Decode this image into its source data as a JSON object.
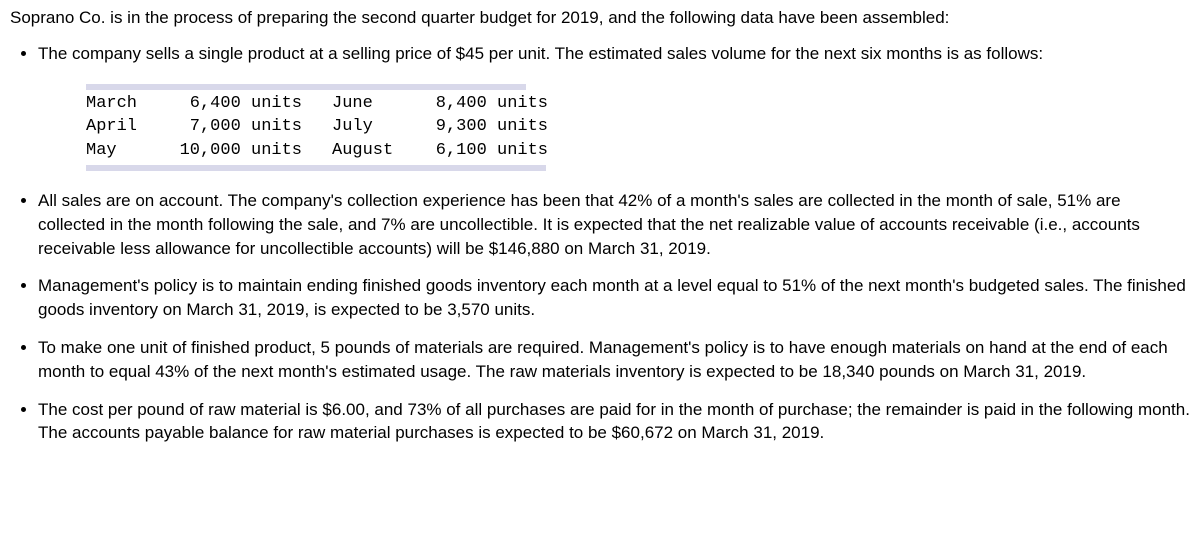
{
  "intro": "Soprano Co. is in the process of preparing the second quarter budget for 2019, and the following data have been assembled:",
  "bullets": {
    "b1": "The company sells a single product at a selling price of $45 per unit. The estimated sales volume for the next six months is as follows:",
    "b2": "All sales are on account. The company's collection experience has been that 42% of a month's sales are collected in the month of sale, 51% are collected in the month following the sale, and 7% are uncollectible. It is expected that the net realizable value of accounts receivable (i.e., accounts receivable less allowance for uncollectible accounts) will be $146,880 on March 31, 2019.",
    "b3": "Management's policy is to maintain ending finished goods inventory each month at a level equal to 51% of the next month's budgeted sales. The finished goods inventory on March 31, 2019, is expected to be 3,570 units.",
    "b4": "To make one unit of finished product, 5 pounds of materials are required. Management's policy is to have enough materials on hand at the end of each month to equal 43% of the next month's estimated usage. The raw materials inventory is expected to be 18,340 pounds on March 31, 2019.",
    "b5": "The cost per pound of raw material is $6.00, and 73% of all purchases are paid for in the month of purchase; the remainder is paid in the following month. The accounts payable balance for raw material purchases is expected to be $60,672 on March 31, 2019."
  },
  "table": {
    "rows": [
      {
        "m1": "March",
        "u1": " 6,400 units",
        "m2": "June",
        "u2": "8,400 units"
      },
      {
        "m1": "April",
        "u1": " 7,000 units",
        "m2": "July",
        "u2": "9,300 units"
      },
      {
        "m1": "May",
        "u1": "10,000 units",
        "m2": "August",
        "u2": "6,100 units"
      }
    ]
  }
}
